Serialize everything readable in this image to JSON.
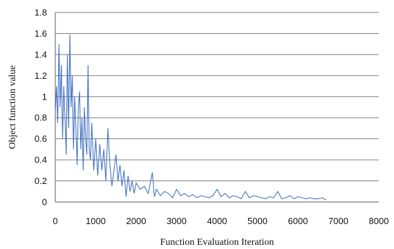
{
  "chart_data": {
    "type": "line",
    "title": "",
    "xlabel": "Function Evaluation Iteration",
    "ylabel": "Object function value",
    "xlim": [
      0,
      8000
    ],
    "ylim": [
      0,
      1.8
    ],
    "x_ticks": [
      "0",
      "1000",
      "2000",
      "3000",
      "4000",
      "5000",
      "6000",
      "7000",
      "8000"
    ],
    "y_ticks": [
      "0",
      "0.2",
      "0.4",
      "0.6",
      "0.8",
      "1",
      "1.2",
      "1.4",
      "1.6",
      "1.8"
    ],
    "grid": "horizontal",
    "legend": "none",
    "series_color": "#4472c4",
    "grid_color": "#7f7f7f",
    "series": [
      {
        "x": [
          0,
          30,
          60,
          90,
          120,
          150,
          180,
          210,
          240,
          270,
          300,
          330,
          360,
          390,
          420,
          450,
          480,
          510,
          540,
          570,
          600,
          630,
          660,
          690,
          720,
          750,
          780,
          810,
          840,
          870,
          900,
          950,
          1000,
          1050,
          1100,
          1150,
          1200,
          1250,
          1300,
          1350,
          1400,
          1450,
          1500,
          1550,
          1600,
          1650,
          1700,
          1750,
          1800,
          1850,
          1900,
          1950,
          2000,
          2100,
          2200,
          2300,
          2400,
          2450,
          2500,
          2600,
          2700,
          2800,
          2900,
          3000,
          3100,
          3200,
          3300,
          3400,
          3500,
          3600,
          3700,
          3800,
          3900,
          4000,
          4100,
          4200,
          4300,
          4400,
          4500,
          4600,
          4700,
          4800,
          4900,
          5000,
          5100,
          5200,
          5300,
          5400,
          5500,
          5600,
          5700,
          5800,
          5900,
          6000,
          6100,
          6200,
          6300,
          6400,
          6500,
          6600,
          6700
        ],
        "values": [
          0.85,
          1.1,
          0.75,
          1.5,
          0.9,
          1.3,
          0.6,
          1.1,
          0.8,
          0.45,
          1.4,
          0.7,
          1.59,
          0.9,
          1.2,
          0.5,
          1.0,
          0.7,
          0.35,
          0.9,
          1.05,
          0.5,
          0.8,
          0.3,
          0.9,
          0.6,
          0.45,
          1.3,
          0.5,
          0.4,
          0.75,
          0.3,
          0.6,
          0.25,
          0.55,
          0.3,
          0.5,
          0.2,
          0.7,
          0.35,
          0.15,
          0.3,
          0.45,
          0.2,
          0.35,
          0.15,
          0.3,
          0.05,
          0.25,
          0.1,
          0.2,
          0.08,
          0.18,
          0.12,
          0.15,
          0.08,
          0.28,
          0.05,
          0.12,
          0.06,
          0.1,
          0.08,
          0.04,
          0.12,
          0.06,
          0.08,
          0.05,
          0.07,
          0.04,
          0.06,
          0.05,
          0.04,
          0.06,
          0.12,
          0.05,
          0.08,
          0.04,
          0.06,
          0.05,
          0.03,
          0.1,
          0.04,
          0.06,
          0.05,
          0.04,
          0.03,
          0.05,
          0.04,
          0.1,
          0.03,
          0.04,
          0.06,
          0.03,
          0.05,
          0.04,
          0.03,
          0.04,
          0.03,
          0.03,
          0.04,
          0.02
        ]
      }
    ]
  }
}
